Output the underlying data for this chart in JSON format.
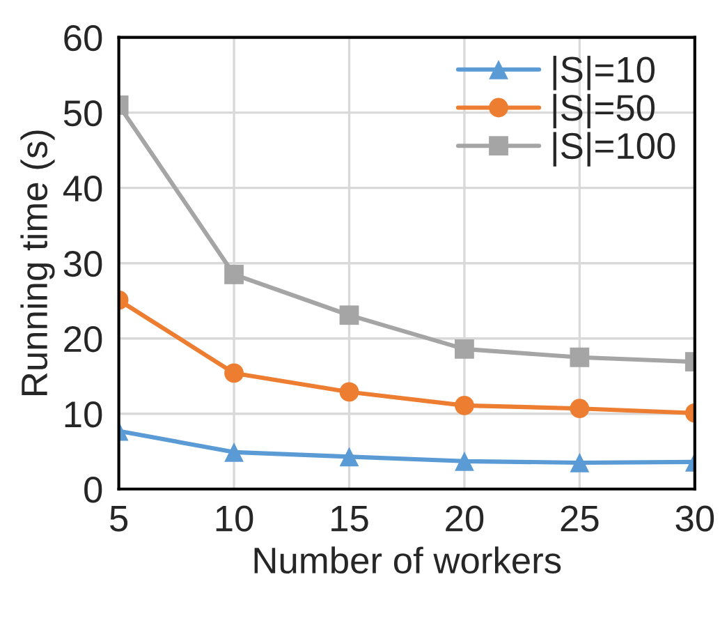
{
  "chart_data": {
    "type": "line",
    "xlabel": "Number of workers",
    "ylabel": "Running time (s)",
    "x": [
      5,
      10,
      15,
      20,
      25,
      30
    ],
    "xlim": [
      5,
      30
    ],
    "xticks": [
      5,
      10,
      15,
      20,
      25,
      30
    ],
    "ylim": [
      0,
      60
    ],
    "yticks": [
      0,
      10,
      20,
      30,
      40,
      50,
      60
    ],
    "grid": true,
    "legend": "top right",
    "series": [
      {
        "name": "|S|=10",
        "color": "#5b9bd5",
        "marker": "triangle",
        "values": [
          7.7,
          4.9,
          4.3,
          3.7,
          3.5,
          3.6
        ]
      },
      {
        "name": "|S|=50",
        "color": "#ed7d31",
        "marker": "circle",
        "values": [
          25.1,
          15.4,
          12.9,
          11.1,
          10.7,
          10.1
        ]
      },
      {
        "name": "|S|=100",
        "color": "#a5a5a5",
        "marker": "square",
        "values": [
          51,
          28.5,
          23.1,
          18.6,
          17.5,
          16.9
        ]
      }
    ]
  }
}
